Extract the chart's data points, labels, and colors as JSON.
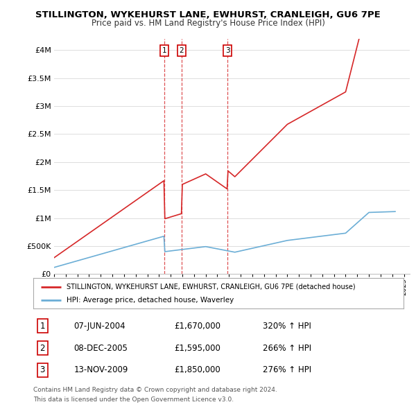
{
  "title": "STILLINGTON, WYKEHURST LANE, EWHURST, CRANLEIGH, GU6 7PE",
  "subtitle": "Price paid vs. HM Land Registry's House Price Index (HPI)",
  "legend_line1": "STILLINGTON, WYKEHURST LANE, EWHURST, CRANLEIGH, GU6 7PE (detached house)",
  "legend_line2": "HPI: Average price, detached house, Waverley",
  "footer_line1": "Contains HM Land Registry data © Crown copyright and database right 2024.",
  "footer_line2": "This data is licensed under the Open Government Licence v3.0.",
  "transactions": [
    {
      "num": 1,
      "date": "07-JUN-2004",
      "price": "£1,670,000",
      "hpi": "320% ↑ HPI",
      "year": 2004.44
    },
    {
      "num": 2,
      "date": "08-DEC-2005",
      "price": "£1,595,000",
      "hpi": "266% ↑ HPI",
      "year": 2005.94
    },
    {
      "num": 3,
      "date": "13-NOV-2009",
      "price": "£1,850,000",
      "hpi": "276% ↑ HPI",
      "year": 2009.87
    }
  ],
  "hpi_color": "#6baed6",
  "price_color": "#d62728",
  "vline_color": "#d62728",
  "ylim": [
    0,
    4200000
  ],
  "xlim_start": 1995.0,
  "xlim_end": 2025.5,
  "yticks": [
    0,
    500000,
    1000000,
    1500000,
    2000000,
    2500000,
    3000000,
    3500000,
    4000000
  ],
  "ytick_labels": [
    "£0",
    "£500K",
    "£1M",
    "£1.5M",
    "£2M",
    "£2.5M",
    "£3M",
    "£3.5M",
    "£4M"
  ]
}
